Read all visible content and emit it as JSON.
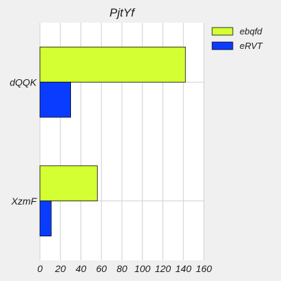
{
  "chart_data": {
    "type": "bar",
    "orientation": "horizontal",
    "title": "PjtYf",
    "xlabel": "",
    "ylabel": "",
    "categories": [
      "dQQK",
      "XzmF"
    ],
    "series": [
      {
        "name": "ebqfd",
        "values": [
          142,
          56
        ],
        "color": "#d4ff33"
      },
      {
        "name": "eRVT",
        "values": [
          30,
          11
        ],
        "color": "#0a3cff"
      }
    ],
    "xlim": [
      0,
      160
    ],
    "xticks": [
      0,
      20,
      40,
      60,
      80,
      100,
      120,
      140,
      160
    ],
    "grid": true,
    "legend_position": "top-right",
    "colors": {
      "background": "#f0f0f0",
      "plot_background": "#ffffff",
      "grid": "#cfcfcf",
      "bar_edge": "#000000"
    }
  }
}
